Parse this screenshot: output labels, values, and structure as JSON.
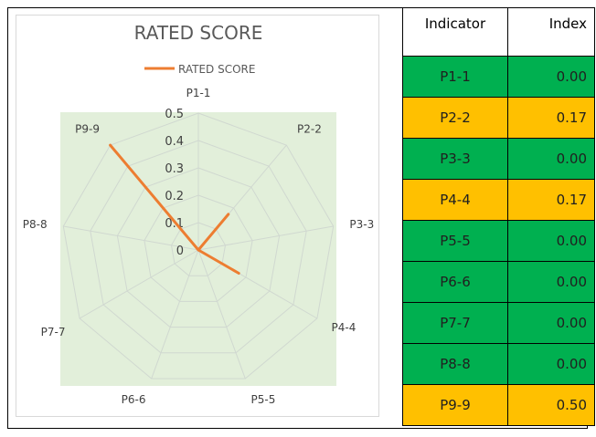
{
  "colors": {
    "green": "#00b050",
    "amber": "#ffc000",
    "line": "#ed7d31",
    "plot_bg": "#e2efda",
    "grid": "#d0d8d0"
  },
  "table": {
    "headers": {
      "indicator": "Indicator",
      "index": "Index"
    },
    "rows": [
      {
        "indicator": "P1-1",
        "index": "0.00",
        "status": "green"
      },
      {
        "indicator": "P2-2",
        "index": "0.17",
        "status": "amber"
      },
      {
        "indicator": "P3-3",
        "index": "0.00",
        "status": "green"
      },
      {
        "indicator": "P4-4",
        "index": "0.17",
        "status": "amber"
      },
      {
        "indicator": "P5-5",
        "index": "0.00",
        "status": "green"
      },
      {
        "indicator": "P6-6",
        "index": "0.00",
        "status": "green"
      },
      {
        "indicator": "P7-7",
        "index": "0.00",
        "status": "green"
      },
      {
        "indicator": "P8-8",
        "index": "0.00",
        "status": "green"
      },
      {
        "indicator": "P9-9",
        "index": "0.50",
        "status": "amber"
      }
    ]
  },
  "chart_data": {
    "type": "radar",
    "title": "RATED SCORE",
    "legend_position": "top",
    "categories": [
      "P1-1",
      "P2-2",
      "P3-3",
      "P4-4",
      "P5-5",
      "P6-6",
      "P7-7",
      "P8-8",
      "P9-9"
    ],
    "series": [
      {
        "name": "RATED SCORE",
        "values": [
          0,
          0.17,
          0,
          0.17,
          0,
          0,
          0,
          0,
          0.5
        ]
      }
    ],
    "radial_ticks": [
      "0",
      "0.1",
      "0.2",
      "0.3",
      "0.4",
      "0.5"
    ],
    "rlim": [
      0,
      0.5
    ],
    "grid": true
  }
}
